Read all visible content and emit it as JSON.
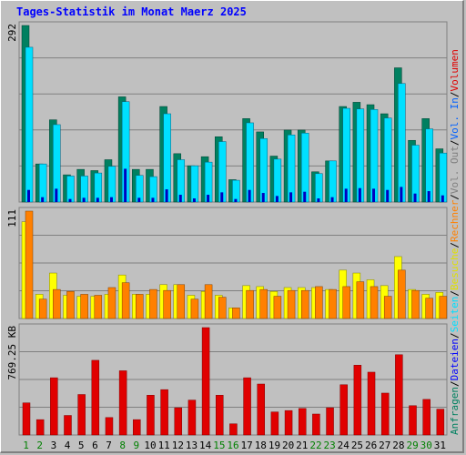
{
  "title": "Tages-Statistik im Monat Maerz 2025",
  "colors": {
    "background": "#c0c0c0",
    "grid": "#808080",
    "anfragen": "#008060",
    "dateien": "#00e0ff",
    "seiten": "#0000c0",
    "besuche": "#ffff00",
    "rechner": "#ff8000",
    "volumen": "#e00000",
    "weekday_label": "#000000",
    "weekend_label": "#008000"
  },
  "chart_data": [
    {
      "type": "bar",
      "name": "requests-chart",
      "y_label": "292",
      "ylim": [
        0,
        292
      ],
      "categories": [
        "1",
        "2",
        "3",
        "4",
        "5",
        "6",
        "7",
        "8",
        "9",
        "10",
        "11",
        "12",
        "13",
        "14",
        "15",
        "16",
        "17",
        "18",
        "19",
        "20",
        "21",
        "22",
        "23",
        "24",
        "25",
        "26",
        "27",
        "28",
        "29",
        "30",
        "31"
      ],
      "weekend_days": [
        "1",
        "2",
        "8",
        "9",
        "15",
        "16",
        "22",
        "23",
        "29",
        "30"
      ],
      "series": [
        {
          "name": "Anfragen",
          "values": [
            292,
            63,
            136,
            45,
            54,
            52,
            70,
            174,
            54,
            54,
            158,
            80,
            60,
            75,
            108,
            37,
            138,
            116,
            76,
            119,
            119,
            50,
            68,
            158,
            165,
            161,
            146,
            222,
            102,
            138,
            88
          ]
        },
        {
          "name": "Dateien",
          "values": [
            256,
            63,
            128,
            43,
            43,
            48,
            59,
            166,
            44,
            42,
            146,
            70,
            60,
            66,
            100,
            36,
            131,
            105,
            71,
            111,
            114,
            47,
            68,
            155,
            154,
            153,
            139,
            196,
            94,
            121,
            81
          ]
        },
        {
          "name": "Seiten",
          "values": [
            20,
            8,
            22,
            5,
            7,
            7,
            8,
            55,
            7,
            7,
            21,
            12,
            6,
            12,
            16,
            5,
            20,
            15,
            10,
            16,
            17,
            6,
            8,
            22,
            23,
            22,
            20,
            25,
            14,
            18,
            11
          ]
        }
      ]
    },
    {
      "type": "bar",
      "name": "visits-chart",
      "y_label": "111",
      "ylim": [
        0,
        111
      ],
      "categories": [
        "1",
        "2",
        "3",
        "4",
        "5",
        "6",
        "7",
        "8",
        "9",
        "10",
        "11",
        "12",
        "13",
        "14",
        "15",
        "16",
        "17",
        "18",
        "19",
        "20",
        "21",
        "22",
        "23",
        "24",
        "25",
        "26",
        "27",
        "28",
        "29",
        "30",
        "31"
      ],
      "series": [
        {
          "name": "Besuche",
          "values": [
            100,
            25,
            47,
            24,
            23,
            23,
            25,
            45,
            25,
            25,
            35,
            35,
            24,
            28,
            24,
            11,
            34,
            33,
            28,
            32,
            32,
            32,
            30,
            50,
            47,
            40,
            34,
            64,
            30,
            25,
            27
          ]
        },
        {
          "name": "Rechner",
          "values": [
            111,
            20,
            30,
            28,
            25,
            24,
            32,
            37,
            25,
            30,
            29,
            35,
            20,
            35,
            22,
            11,
            29,
            30,
            23,
            29,
            29,
            33,
            30,
            33,
            38,
            33,
            23,
            50,
            29,
            21,
            23
          ]
        }
      ]
    },
    {
      "type": "bar",
      "name": "volume-chart",
      "y_label": "769.25 KB",
      "ylim": [
        0,
        769.25
      ],
      "categories": [
        "1",
        "2",
        "3",
        "4",
        "5",
        "6",
        "7",
        "8",
        "9",
        "10",
        "11",
        "12",
        "13",
        "14",
        "15",
        "16",
        "17",
        "18",
        "19",
        "20",
        "21",
        "22",
        "23",
        "24",
        "25",
        "26",
        "27",
        "28",
        "29",
        "30",
        "31"
      ],
      "series": [
        {
          "name": "Volumen",
          "values": [
            230,
            110,
            410,
            140,
            290,
            535,
            125,
            460,
            110,
            285,
            325,
            195,
            250,
            769.25,
            285,
            80,
            410,
            365,
            165,
            175,
            190,
            150,
            195,
            360,
            500,
            450,
            300,
            575,
            210,
            255,
            185
          ]
        }
      ]
    }
  ],
  "legend": {
    "upper": [
      {
        "text": "Anfragen",
        "color": "#008060"
      },
      {
        "text": "/",
        "color": "#000000"
      },
      {
        "text": "Dateien",
        "color": "#0000ff"
      },
      {
        "text": "/",
        "color": "#000000"
      },
      {
        "text": "Seiten",
        "color": "#00e0ff"
      },
      {
        "text": "/",
        "color": "#000000"
      },
      {
        "text": "Besuche",
        "color": "#e0e000"
      },
      {
        "text": "/",
        "color": "#000000"
      },
      {
        "text": "Rechner",
        "color": "#ff8000"
      },
      {
        "text": "/",
        "color": "#000000"
      },
      {
        "text": "Vol. Out",
        "color": "#808080"
      },
      {
        "text": "/",
        "color": "#000000"
      },
      {
        "text": "Vol. In",
        "color": "#0060ff"
      },
      {
        "text": "/",
        "color": "#000000"
      },
      {
        "text": "Volumen",
        "color": "#e00000"
      }
    ]
  }
}
